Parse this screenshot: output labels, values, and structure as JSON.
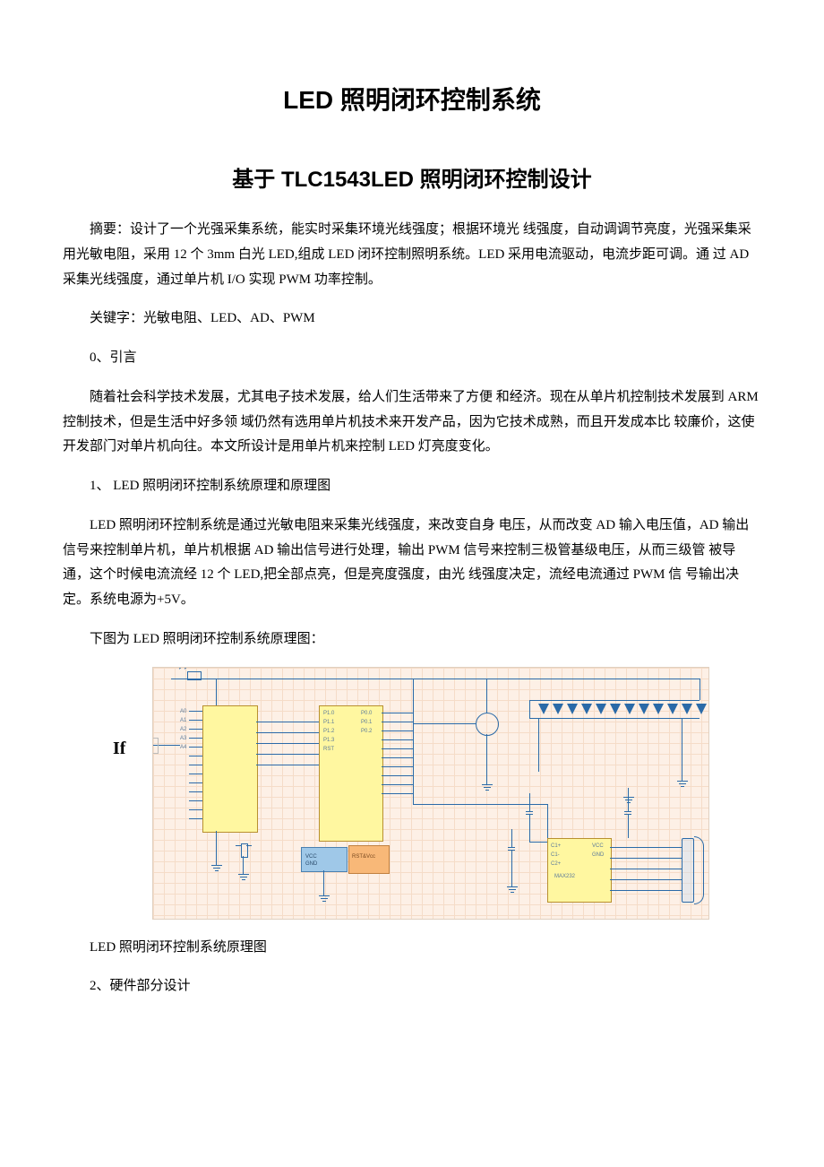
{
  "title_main": "LED 照明闭环控制系统",
  "title_sub": "基于 TLC1543LED 照明闭环控制设计",
  "abstract": "摘要：设计了一个光强采集系统，能实时采集环境光线强度；根据环境光 线强度，自动调调节亮度，光强采集采用光敏电阻，采用 12 个 3mm 白光 LED,组成 LED 闭环控制照明系统。LED 采用电流驱动，电流步距可调。通 过 AD 采集光线强度，通过单片机 I/O 实现 PWM 功率控制。",
  "keywords": "关键字：光敏电阻、LED、AD、PWM",
  "section0_heading": "0、引言",
  "section0_body": "随着社会科学技术发展，尤其电子技术发展，给人们生活带来了方便 和经济。现在从单片机控制技术发展到 ARM 控制技术，但是生活中好多领 域仍然有选用单片机技术来开发产品，因为它技术成熟，而且开发成本比 较廉价，这使开发部门对单片机向往。本文所设计是用单片机来控制 LED 灯亮度变化。",
  "section1_heading": "1、 LED 照明闭环控制系统原理和原理图",
  "section1_body": "LED 照明闭环控制系统是通过光敏电阻来采集光线强度，来改变自身 电压，从而改变 AD 输入电压值，AD 输出信号来控制单片机，单片机根据 AD 输出信号进行处理，输出 PWM 信号来控制三极管基级电压，从而三级管 被导通，这个时候电流流经 12 个 LED,把全部点亮，但是亮度强度，由光 线强度决定，流经电流通过 PWM 信 号输出决定。系统电源为+5V。",
  "section1_figintro": "下图为 LED 照明闭环控制系统原理图：",
  "figure_caption": "LED 照明闭环控制系统原理图",
  "section2_heading": "2、硬件部分设计",
  "diagram": {
    "if_label": "If",
    "led_count": 12,
    "colors": {
      "grid_bg": "#fdf0e6",
      "grid_line": "#f5dcc8",
      "wire": "#2a6aa8",
      "chip_yellow": "#fff7a0",
      "chip_blue": "#9fc8e8"
    }
  }
}
